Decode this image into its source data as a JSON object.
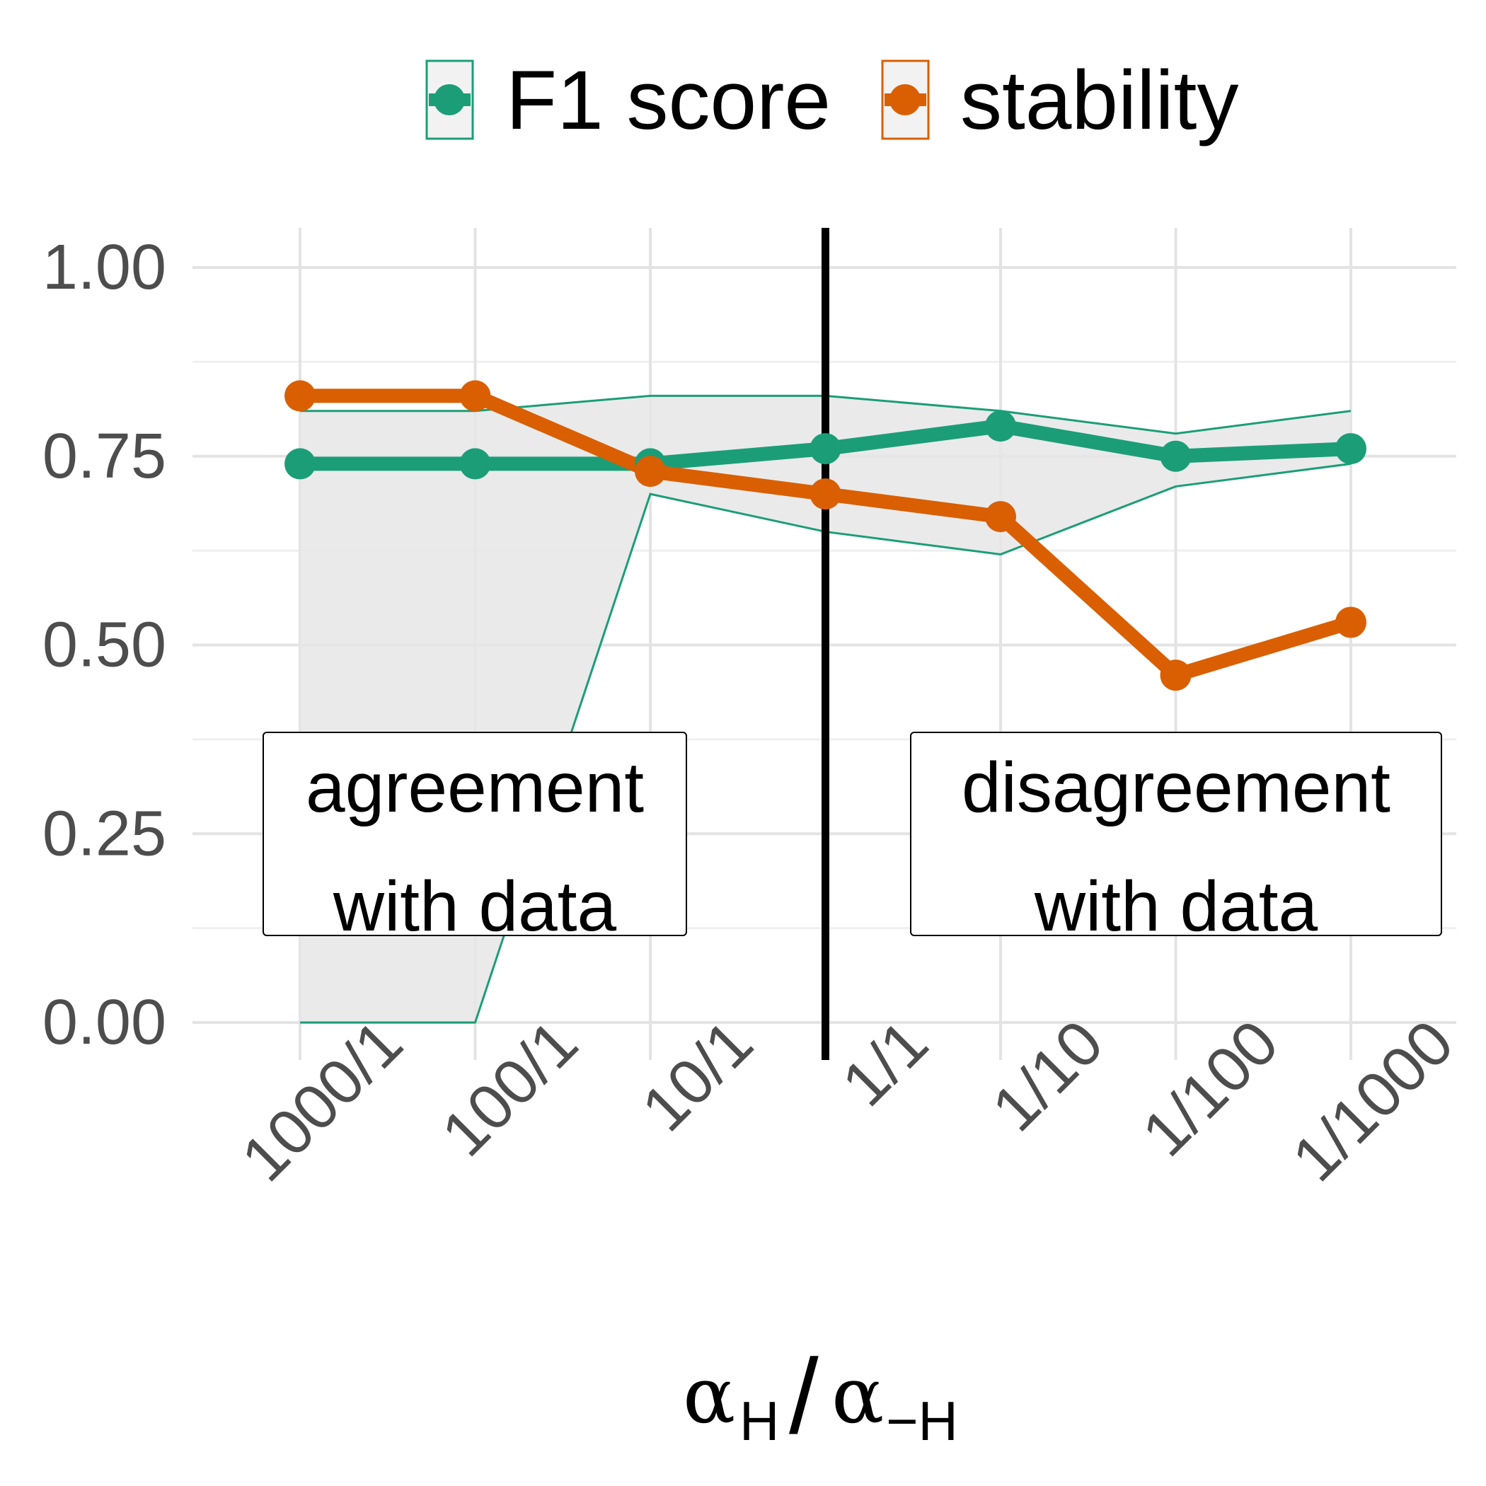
{
  "chart_data": {
    "type": "line",
    "title": "",
    "xlabel": {
      "symbol_num": "α",
      "sub_num": "H",
      "divider": "/",
      "symbol_den": "α",
      "sub_den": "−H"
    },
    "ylabel": "",
    "ylim": [
      0,
      1.05
    ],
    "yticks": [
      "0.00",
      "0.25",
      "0.50",
      "0.75",
      "1.00"
    ],
    "categories": [
      "1000/1",
      "100/1",
      "10/1",
      "1/1",
      "1/10",
      "1/100",
      "1/1000"
    ],
    "series": [
      {
        "name": "F1 score",
        "color": "#1b9e77",
        "values": [
          0.74,
          0.74,
          0.74,
          0.76,
          0.79,
          0.75,
          0.76
        ],
        "band_lower": [
          0.0,
          0.0,
          0.7,
          0.65,
          0.62,
          0.71,
          0.74
        ],
        "band_upper": [
          0.81,
          0.81,
          0.83,
          0.83,
          0.81,
          0.78,
          0.81
        ]
      },
      {
        "name": "stability",
        "color": "#d95f02",
        "values": [
          0.83,
          0.83,
          0.73,
          0.7,
          0.67,
          0.46,
          0.53
        ]
      }
    ],
    "reference_line": {
      "at_category": "1/1",
      "color": "#000000"
    },
    "legend": {
      "position": "top",
      "items": [
        "F1 score",
        "stability"
      ]
    },
    "annotations": [
      {
        "lines": [
          "agreement",
          "with data"
        ]
      },
      {
        "lines": [
          "disagreement",
          "with data"
        ]
      }
    ],
    "band_color": "#e6e6e6",
    "grid": true
  }
}
